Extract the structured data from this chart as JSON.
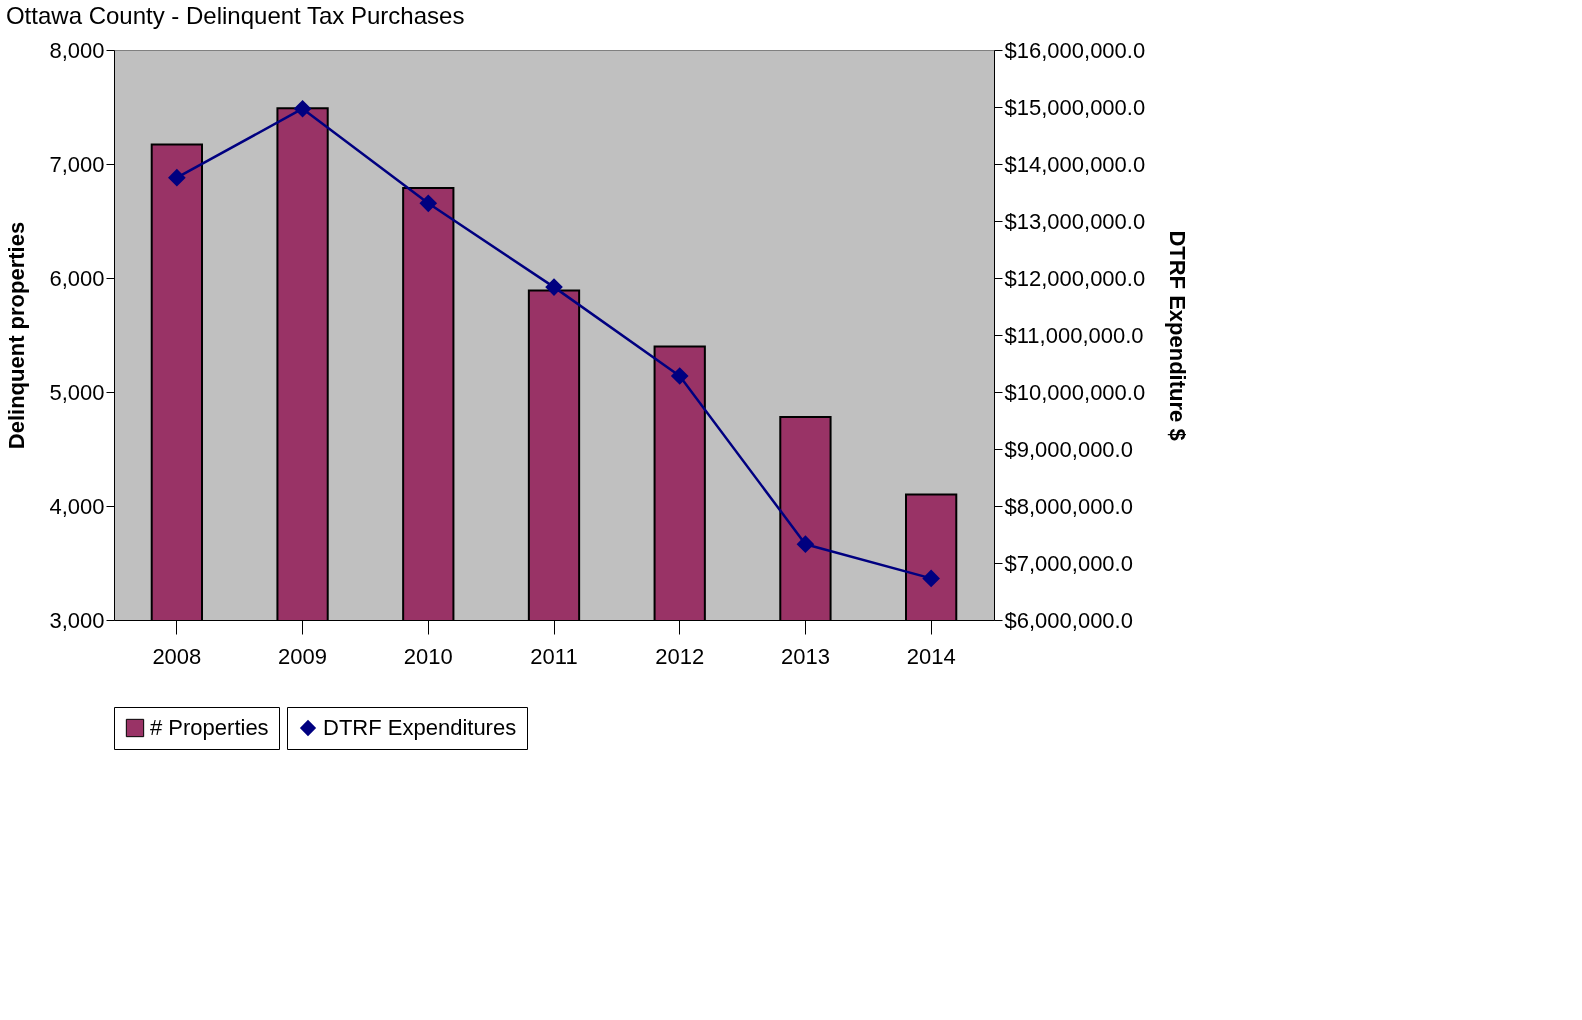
{
  "chart_data": {
    "type": "bar",
    "title": "Ottawa County  -  Delinquent Tax Purchases",
    "ylabel": "Delinquent properties",
    "y2label": "DTRF Expenditure $",
    "categories": [
      "2008",
      "2009",
      "2010",
      "2011",
      "2012",
      "2013",
      "2014"
    ],
    "series": [
      {
        "name": "# Properties",
        "color": "#993366",
        "values": [
          7170,
          7490,
          6790,
          5890,
          5400,
          4780,
          4100
        ]
      },
      {
        "name": "DTRF Expenditures",
        "type": "line",
        "axis": "y2",
        "color": "#000080",
        "marker": "diamond",
        "values": [
          13760000,
          14970000,
          13310000,
          11840000,
          10280000,
          7330000,
          6730000
        ]
      }
    ],
    "ylim": [
      3000,
      8000
    ],
    "yticks": [
      {
        "value": 3000,
        "label": "3,000"
      },
      {
        "value": 4000,
        "label": "4,000"
      },
      {
        "value": 5000,
        "label": "5,000"
      },
      {
        "value": 6000,
        "label": "6,000"
      },
      {
        "value": 7000,
        "label": "7,000"
      },
      {
        "value": 8000,
        "label": "8,000"
      }
    ],
    "y2lim": [
      6000000,
      16000000
    ],
    "y2ticks": [
      {
        "value": 6000000,
        "label": "$6,000,000.0"
      },
      {
        "value": 7000000,
        "label": "$7,000,000.0"
      },
      {
        "value": 8000000,
        "label": "$8,000,000.0"
      },
      {
        "value": 9000000,
        "label": "$9,000,000.0"
      },
      {
        "value": 10000000,
        "label": "$10,000,000.0"
      },
      {
        "value": 11000000,
        "label": "$11,000,000.0"
      },
      {
        "value": 12000000,
        "label": "$12,000,000.0"
      },
      {
        "value": 13000000,
        "label": "$13,000,000.0"
      },
      {
        "value": 14000000,
        "label": "$14,000,000.0"
      },
      {
        "value": 15000000,
        "label": "$15,000,000.0"
      },
      {
        "value": 16000000,
        "label": "$16,000,000.0"
      }
    ],
    "grid": false,
    "legend": "bottom",
    "line_style": "solid"
  }
}
